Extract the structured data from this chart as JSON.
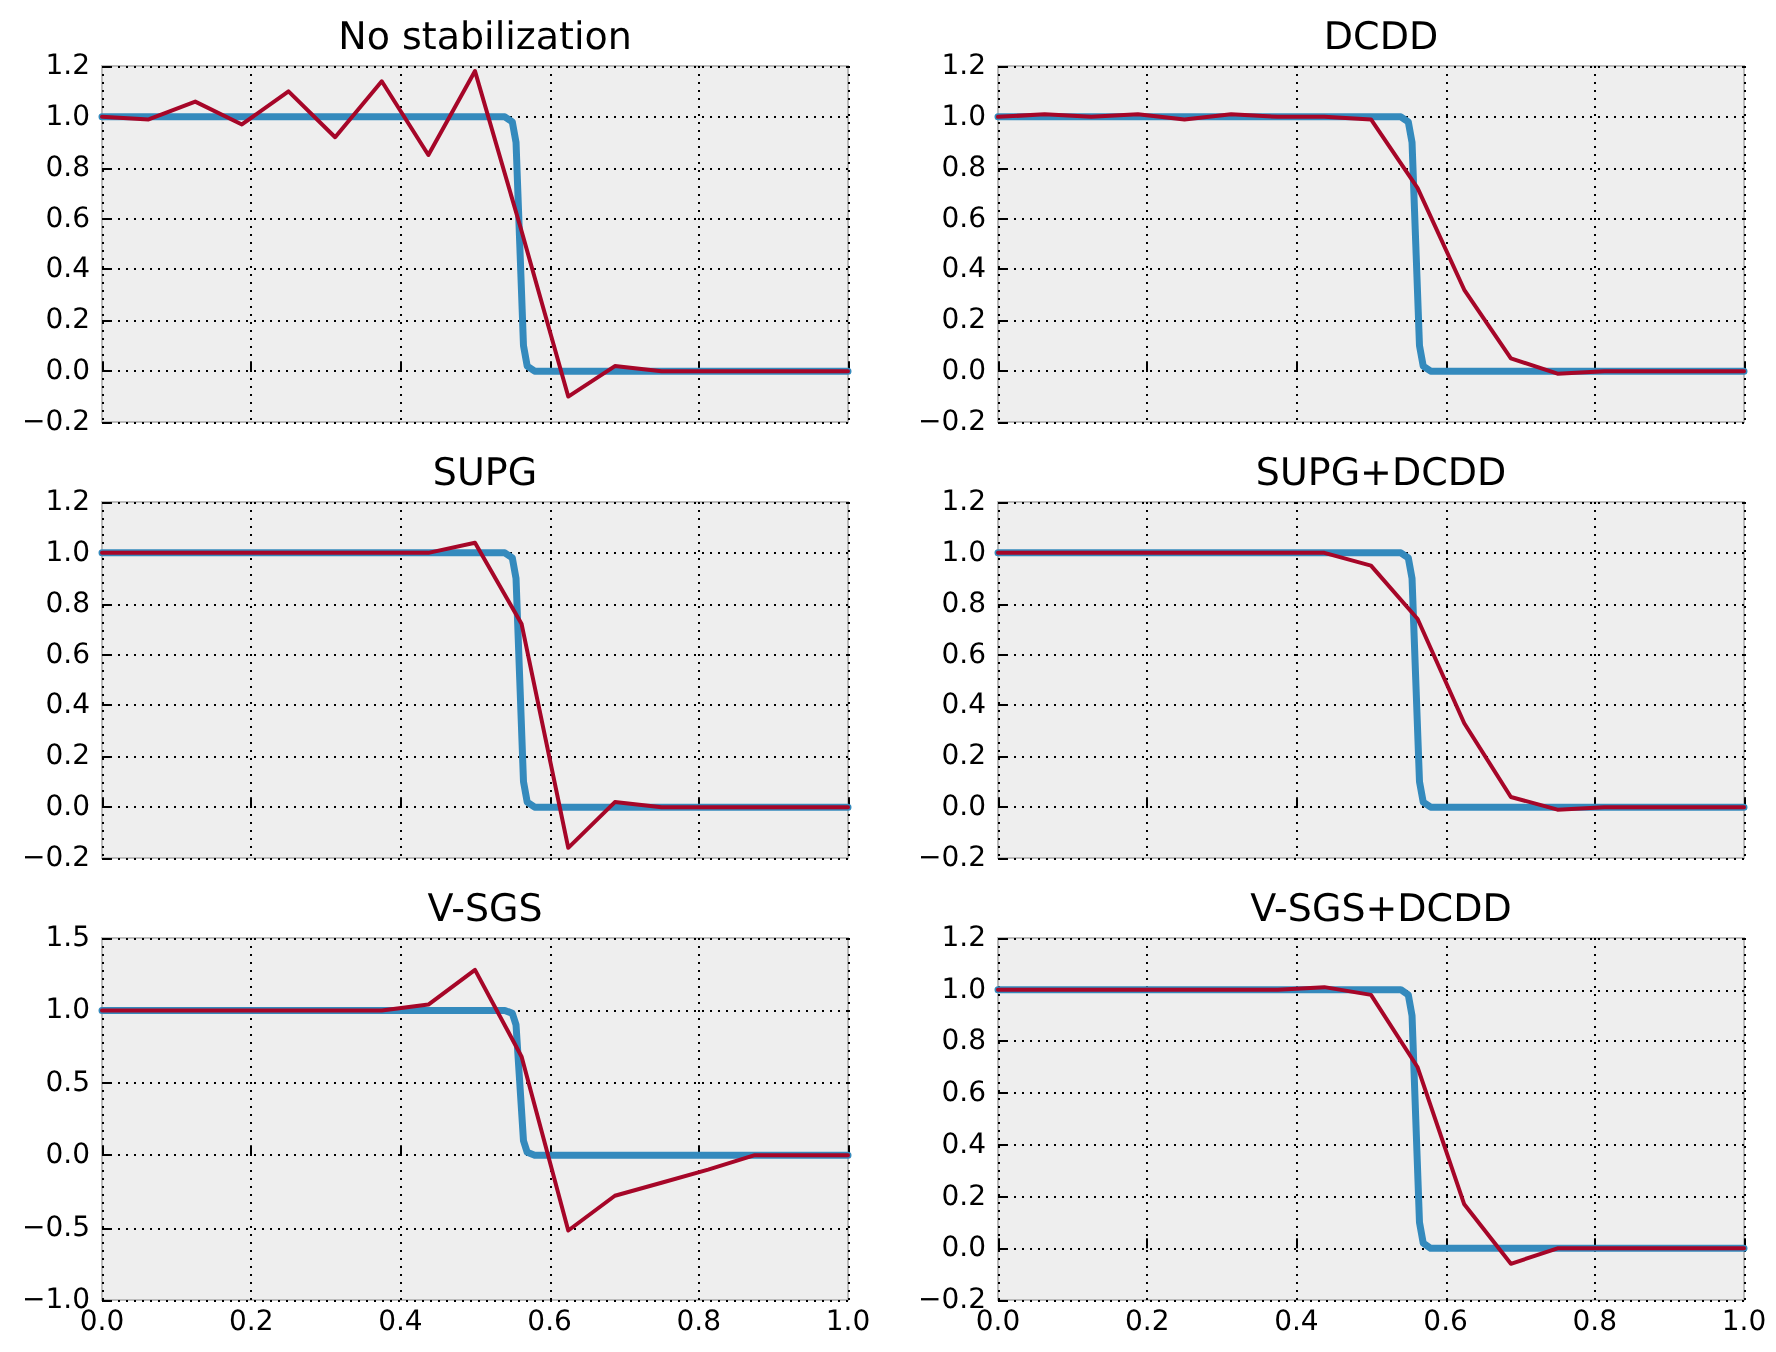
{
  "chart_data": [
    {
      "type": "line",
      "title": "No stabilization",
      "xlim": [
        0,
        1
      ],
      "xticks": [
        {
          "value": 0,
          "label": null
        },
        {
          "value": 0.2,
          "label": null
        },
        {
          "value": 0.4,
          "label": null
        },
        {
          "value": 0.6,
          "label": null
        },
        {
          "value": 0.8,
          "label": null
        },
        {
          "value": 1,
          "label": null
        }
      ],
      "ylim": [
        -0.2,
        1.2
      ],
      "yticks": [
        {
          "value": -0.2,
          "label": "−0.2"
        },
        {
          "value": 0,
          "label": "0.0"
        },
        {
          "value": 0.2,
          "label": "0.2"
        },
        {
          "value": 0.4,
          "label": "0.4"
        },
        {
          "value": 0.6,
          "label": "0.6"
        },
        {
          "value": 0.8,
          "label": "0.8"
        },
        {
          "value": 1,
          "label": "1.0"
        },
        {
          "value": 1.2,
          "label": "1.2"
        }
      ],
      "grid": true,
      "tick_labels": "y",
      "series": [
        {
          "color": "#348abd",
          "x": [
            0,
            0.54,
            0.55,
            0.555,
            0.56,
            0.565,
            0.57,
            0.58,
            1
          ],
          "values": [
            1,
            1,
            0.98,
            0.9,
            0.5,
            0.1,
            0.02,
            0,
            0
          ]
        },
        {
          "color": "#a60628",
          "x": [
            0,
            0.0625,
            0.125,
            0.1875,
            0.25,
            0.3125,
            0.375,
            0.4375,
            0.5,
            0.5625,
            0.625,
            0.6875,
            0.75,
            0.8125,
            0.875,
            0.9375,
            1
          ],
          "values": [
            1.0,
            0.99,
            1.06,
            0.97,
            1.1,
            0.92,
            1.14,
            0.85,
            1.18,
            0.55,
            -0.1,
            0.02,
            0,
            0,
            0,
            0,
            0
          ]
        }
      ]
    },
    {
      "type": "line",
      "title": "DCDD",
      "xlim": [
        0,
        1
      ],
      "xticks": [
        {
          "value": 0,
          "label": null
        },
        {
          "value": 0.2,
          "label": null
        },
        {
          "value": 0.4,
          "label": null
        },
        {
          "value": 0.6,
          "label": null
        },
        {
          "value": 0.8,
          "label": null
        },
        {
          "value": 1,
          "label": null
        }
      ],
      "ylim": [
        -0.2,
        1.2
      ],
      "yticks": [
        {
          "value": -0.2,
          "label": "−0.2"
        },
        {
          "value": 0,
          "label": "0.0"
        },
        {
          "value": 0.2,
          "label": "0.2"
        },
        {
          "value": 0.4,
          "label": "0.4"
        },
        {
          "value": 0.6,
          "label": "0.6"
        },
        {
          "value": 0.8,
          "label": "0.8"
        },
        {
          "value": 1,
          "label": "1.0"
        },
        {
          "value": 1.2,
          "label": "1.2"
        }
      ],
      "grid": true,
      "tick_labels": "y",
      "series": [
        {
          "color": "#348abd",
          "x": [
            0,
            0.54,
            0.55,
            0.555,
            0.56,
            0.565,
            0.57,
            0.58,
            1
          ],
          "values": [
            1,
            1,
            0.98,
            0.9,
            0.5,
            0.1,
            0.02,
            0,
            0
          ]
        },
        {
          "color": "#a60628",
          "x": [
            0,
            0.0625,
            0.125,
            0.1875,
            0.25,
            0.3125,
            0.375,
            0.4375,
            0.5,
            0.5625,
            0.625,
            0.6875,
            0.75,
            0.8125,
            0.875,
            0.9375,
            1
          ],
          "values": [
            1.0,
            1.01,
            1.0,
            1.01,
            0.99,
            1.01,
            1.0,
            1.0,
            0.99,
            0.72,
            0.32,
            0.05,
            -0.01,
            0,
            0,
            0,
            0
          ]
        }
      ]
    },
    {
      "type": "line",
      "title": "SUPG",
      "xlim": [
        0,
        1
      ],
      "xticks": [
        {
          "value": 0,
          "label": null
        },
        {
          "value": 0.2,
          "label": null
        },
        {
          "value": 0.4,
          "label": null
        },
        {
          "value": 0.6,
          "label": null
        },
        {
          "value": 0.8,
          "label": null
        },
        {
          "value": 1,
          "label": null
        }
      ],
      "ylim": [
        -0.2,
        1.2
      ],
      "yticks": [
        {
          "value": -0.2,
          "label": "−0.2"
        },
        {
          "value": 0,
          "label": "0.0"
        },
        {
          "value": 0.2,
          "label": "0.2"
        },
        {
          "value": 0.4,
          "label": "0.4"
        },
        {
          "value": 0.6,
          "label": "0.6"
        },
        {
          "value": 0.8,
          "label": "0.8"
        },
        {
          "value": 1,
          "label": "1.0"
        },
        {
          "value": 1.2,
          "label": "1.2"
        }
      ],
      "grid": true,
      "tick_labels": "y",
      "series": [
        {
          "color": "#348abd",
          "x": [
            0,
            0.54,
            0.55,
            0.555,
            0.56,
            0.565,
            0.57,
            0.58,
            1
          ],
          "values": [
            1,
            1,
            0.98,
            0.9,
            0.5,
            0.1,
            0.02,
            0,
            0
          ]
        },
        {
          "color": "#a60628",
          "x": [
            0,
            0.0625,
            0.125,
            0.1875,
            0.25,
            0.3125,
            0.375,
            0.4375,
            0.5,
            0.5625,
            0.625,
            0.6875,
            0.75,
            0.8125,
            0.875,
            0.9375,
            1
          ],
          "values": [
            1.0,
            1.0,
            1.0,
            1.0,
            1.0,
            1.0,
            1.0,
            1.0,
            1.04,
            0.72,
            -0.16,
            0.02,
            0,
            0,
            0,
            0,
            0
          ]
        }
      ]
    },
    {
      "type": "line",
      "title": "SUPG+DCDD",
      "xlim": [
        0,
        1
      ],
      "xticks": [
        {
          "value": 0,
          "label": null
        },
        {
          "value": 0.2,
          "label": null
        },
        {
          "value": 0.4,
          "label": null
        },
        {
          "value": 0.6,
          "label": null
        },
        {
          "value": 0.8,
          "label": null
        },
        {
          "value": 1,
          "label": null
        }
      ],
      "ylim": [
        -0.2,
        1.2
      ],
      "yticks": [
        {
          "value": -0.2,
          "label": "−0.2"
        },
        {
          "value": 0,
          "label": "0.0"
        },
        {
          "value": 0.2,
          "label": "0.2"
        },
        {
          "value": 0.4,
          "label": "0.4"
        },
        {
          "value": 0.6,
          "label": "0.6"
        },
        {
          "value": 0.8,
          "label": "0.8"
        },
        {
          "value": 1,
          "label": "1.0"
        },
        {
          "value": 1.2,
          "label": "1.2"
        }
      ],
      "grid": true,
      "tick_labels": "y",
      "series": [
        {
          "color": "#348abd",
          "x": [
            0,
            0.54,
            0.55,
            0.555,
            0.56,
            0.565,
            0.57,
            0.58,
            1
          ],
          "values": [
            1,
            1,
            0.98,
            0.9,
            0.5,
            0.1,
            0.02,
            0,
            0
          ]
        },
        {
          "color": "#a60628",
          "x": [
            0,
            0.0625,
            0.125,
            0.1875,
            0.25,
            0.3125,
            0.375,
            0.4375,
            0.5,
            0.5625,
            0.625,
            0.6875,
            0.75,
            0.8125,
            0.875,
            0.9375,
            1
          ],
          "values": [
            1.0,
            1.0,
            1.0,
            1.0,
            1.0,
            1.0,
            1.0,
            1.0,
            0.95,
            0.74,
            0.33,
            0.04,
            -0.01,
            0,
            0,
            0,
            0
          ]
        }
      ]
    },
    {
      "type": "line",
      "title": "V-SGS",
      "xlim": [
        0,
        1
      ],
      "xticks": [
        {
          "value": 0,
          "label": "0.0"
        },
        {
          "value": 0.2,
          "label": "0.2"
        },
        {
          "value": 0.4,
          "label": "0.4"
        },
        {
          "value": 0.6,
          "label": "0.6"
        },
        {
          "value": 0.8,
          "label": "0.8"
        },
        {
          "value": 1,
          "label": "1.0"
        }
      ],
      "ylim": [
        -1,
        1.5
      ],
      "yticks": [
        {
          "value": -1,
          "label": "−1.0"
        },
        {
          "value": -0.5,
          "label": "−0.5"
        },
        {
          "value": 0,
          "label": "0.0"
        },
        {
          "value": 0.5,
          "label": "0.5"
        },
        {
          "value": 1,
          "label": "1.0"
        },
        {
          "value": 1.5,
          "label": "1.5"
        }
      ],
      "grid": true,
      "series": [
        {
          "color": "#348abd",
          "x": [
            0,
            0.54,
            0.55,
            0.555,
            0.56,
            0.565,
            0.57,
            0.58,
            1
          ],
          "values": [
            1,
            1,
            0.98,
            0.9,
            0.5,
            0.1,
            0.02,
            0,
            0
          ]
        },
        {
          "color": "#a60628",
          "x": [
            0,
            0.0625,
            0.125,
            0.1875,
            0.25,
            0.3125,
            0.375,
            0.4375,
            0.5,
            0.5625,
            0.625,
            0.6875,
            0.75,
            0.8125,
            0.875,
            0.9375,
            1
          ],
          "values": [
            1.0,
            1.0,
            1.0,
            1.0,
            1.0,
            1.0,
            1.0,
            1.04,
            1.28,
            0.68,
            -0.52,
            -0.28,
            -0.19,
            -0.1,
            0,
            0,
            0
          ]
        }
      ]
    },
    {
      "type": "line",
      "title": "V-SGS+DCDD",
      "xlim": [
        0,
        1
      ],
      "xticks": [
        {
          "value": 0,
          "label": "0.0"
        },
        {
          "value": 0.2,
          "label": "0.2"
        },
        {
          "value": 0.4,
          "label": "0.4"
        },
        {
          "value": 0.6,
          "label": "0.6"
        },
        {
          "value": 0.8,
          "label": "0.8"
        },
        {
          "value": 1,
          "label": "1.0"
        }
      ],
      "ylim": [
        -0.2,
        1.2
      ],
      "yticks": [
        {
          "value": -0.2,
          "label": "−0.2"
        },
        {
          "value": 0,
          "label": "0.0"
        },
        {
          "value": 0.2,
          "label": "0.2"
        },
        {
          "value": 0.4,
          "label": "0.4"
        },
        {
          "value": 0.6,
          "label": "0.6"
        },
        {
          "value": 0.8,
          "label": "0.8"
        },
        {
          "value": 1,
          "label": "1.0"
        },
        {
          "value": 1.2,
          "label": "1.2"
        }
      ],
      "grid": true,
      "series": [
        {
          "color": "#348abd",
          "x": [
            0,
            0.54,
            0.55,
            0.555,
            0.56,
            0.565,
            0.57,
            0.58,
            1
          ],
          "values": [
            1,
            1,
            0.98,
            0.9,
            0.5,
            0.1,
            0.02,
            0,
            0
          ]
        },
        {
          "color": "#a60628",
          "x": [
            0,
            0.0625,
            0.125,
            0.1875,
            0.25,
            0.3125,
            0.375,
            0.4375,
            0.5,
            0.5625,
            0.625,
            0.6875,
            0.75,
            0.8125,
            0.875,
            0.9375,
            1
          ],
          "values": [
            1.0,
            1.0,
            1.0,
            1.0,
            1.0,
            1.0,
            1.0,
            1.01,
            0.98,
            0.7,
            0.17,
            -0.06,
            0,
            0,
            0,
            0,
            0
          ]
        }
      ]
    }
  ]
}
